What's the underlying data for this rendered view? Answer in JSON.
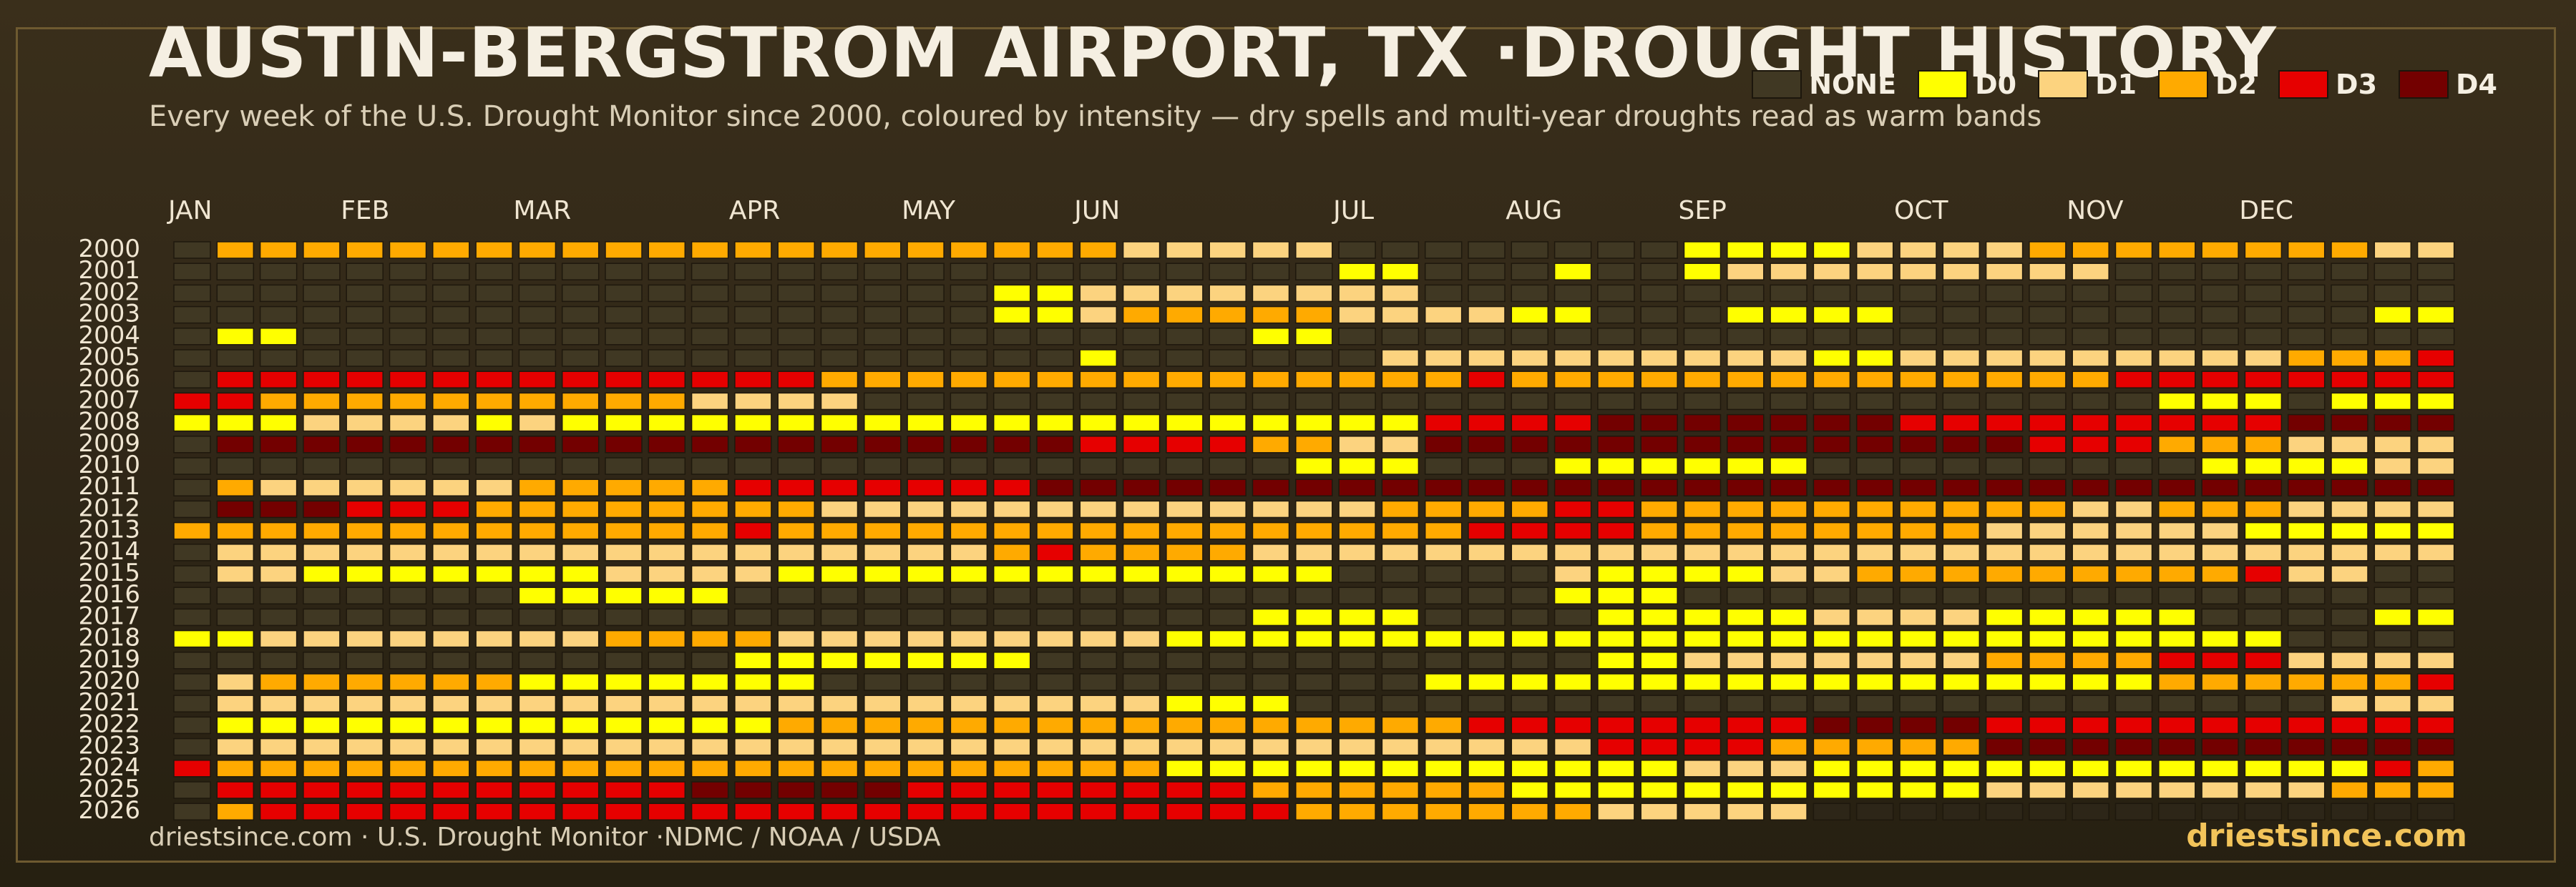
{
  "header": {
    "title": "AUSTIN-BERGSTROM AIRPORT, TX ·DROUGHT HISTORY",
    "subtitle": "Every week of the U.S. Drought Monitor since 2000, coloured by intensity — dry spells and multi-year droughts read as warm bands"
  },
  "legend": [
    {
      "label": "NONE",
      "color": "#403823"
    },
    {
      "label": "D0",
      "color": "#ffff00"
    },
    {
      "label": "D1",
      "color": "#fcd37f"
    },
    {
      "label": "D2",
      "color": "#ffaa00"
    },
    {
      "label": "D3",
      "color": "#e60000"
    },
    {
      "label": "D4",
      "color": "#730000"
    }
  ],
  "footer": {
    "source": "driestsince.com  · U.S. Drought Monitor ·NDMC / NOAA / USDA",
    "brand": "driestsince.com"
  },
  "chart_data": {
    "type": "heatmap",
    "title": "AUSTIN-BERGSTROM AIRPORT, TX ·DROUGHT HISTORY",
    "x_tick_labels": [
      "JAN",
      "FEB",
      "MAR",
      "APR",
      "MAY",
      "JUN",
      "JUL",
      "AUG",
      "SEP",
      "OCT",
      "NOV",
      "DEC"
    ],
    "x_tick_positions_week": [
      0,
      4,
      8,
      13,
      17,
      21,
      27,
      31,
      35,
      40,
      44,
      48
    ],
    "weeks_per_year": 53,
    "levels": [
      "NONE",
      "D0",
      "D1",
      "D2",
      "D3",
      "D4"
    ],
    "level_colors": [
      "#403823",
      "#ffff00",
      "#fcd37f",
      "#ffaa00",
      "#e60000",
      "#730000"
    ],
    "empty_color": "#2d2618",
    "legend_position": "top-right",
    "cell_encoding": ". = no data, 0 = NONE, 1 = D0, 2 = D1, 3 = D2, 4 = D3, 5 = D4",
    "rows": [
      {
        "year": "2000",
        "weeks": "03333333333333333333332222200000000111122223333333322000000000"
      },
      {
        "year": "2001",
        "weeks": "00000000000000000000000000011000100122222222200000000"
      },
      {
        "year": "2002",
        "weeks": "00000000000000000001122222222000000000000000000000000"
      },
      {
        "year": "2003",
        "weeks": "00000000000000000001123333322221100011110000000000011111"
      },
      {
        "year": "2004",
        "weeks": "01100000000000000000000001100000000000000000000000000"
      },
      {
        "year": "2005",
        "weeks": "00000000000000000000010000002222222222112222222223334"
      },
      {
        "year": "2006",
        "weeks": "04444444444444433333333333333343333333333333344444444"
      },
      {
        "year": "2007",
        "weeks": "44333333333322220000000000000000000000000000001110111100"
      },
      {
        "year": "2008",
        "weeks": "11122221211111111111111111111444455555554444444445555555"
      },
      {
        "year": "2009",
        "weeks": "05555555555555555555544443322555555555555554443332222111"
      },
      {
        "year": "2010",
        "weeks": "00000000000000000000000000111000111111000000000111122222"
      },
      {
        "year": "2011",
        "weeks": "03222222333334444444555555555555555555555555555555555"
      },
      {
        "year": "2012",
        "weeks": "05554443333333322222222222223333443333333333223332222222"
      },
      {
        "year": "2013",
        "weeks": "33333333333334333333333333333344443333333322222211111111"
      },
      {
        "year": "2014",
        "weeks": "02222222222222222223433332222222222222222222222222222222"
      },
      {
        "year": "2015",
        "weeks": "02211111112222111111111111100000211112233333333342200000"
      },
      {
        "year": "2016",
        "weeks": "00000000111110000000000000000000111000000000000000000"
      },
      {
        "year": "2017",
        "weeks": "00000000000000000000000001111000011111222211111000011111"
      },
      {
        "year": "2018",
        "weeks": "11222222223333222222222111111111111111111111111110000000"
      },
      {
        "year": "2019",
        "weeks": "00000000000001111111000000000000011222222233334442222222"
      },
      {
        "year": "2020",
        "weeks": "02333333111111100000000000000111111111111111113333334444"
      },
      {
        "year": "2021",
        "weeks": "02222222222222222222222111000000000000000000000000222000011"
      },
      {
        "year": "2022",
        "weeks": "01111111111111333333333333333344444444555544444444444442222"
      },
      {
        "year": "2023",
        "weeks": "02222222222222222222222222222222244443333355555555555444444"
      },
      {
        "year": "2024",
        "weeks": "43333333333333333333333111111111111222111111111111143333333"
      },
      {
        "year": "2025",
        "weeks": "04444444444455555444444443333331111111111122222222333333"
      },
      {
        "year": "2026",
        "weeks": "03444444444444444444444444333333322222...."
      }
    ]
  }
}
